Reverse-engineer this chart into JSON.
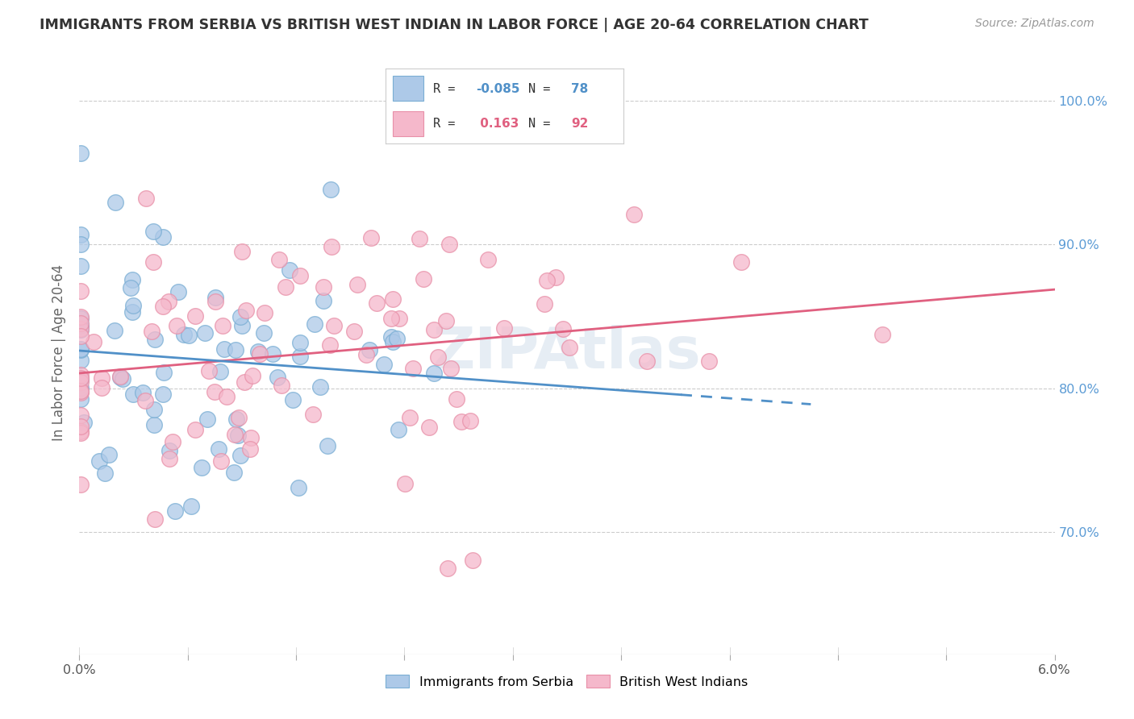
{
  "title": "IMMIGRANTS FROM SERBIA VS BRITISH WEST INDIAN IN LABOR FORCE | AGE 20-64 CORRELATION CHART",
  "source": "Source: ZipAtlas.com",
  "ylabel": "In Labor Force | Age 20-64",
  "xmin": 0.0,
  "xmax": 0.06,
  "ymin": 0.615,
  "ymax": 1.035,
  "serbia_R": -0.085,
  "serbia_N": 78,
  "bwi_R": 0.163,
  "bwi_N": 92,
  "serbia_fill_color": "#adc9e8",
  "serbia_edge_color": "#7aaed4",
  "bwi_fill_color": "#f5b8cb",
  "bwi_edge_color": "#e890a8",
  "serbia_line_color": "#5090c8",
  "bwi_line_color": "#e06080",
  "grid_color": "#cccccc",
  "ytick_vals": [
    0.7,
    0.8,
    0.9,
    1.0
  ],
  "ytick_labels": [
    "70.0%",
    "80.0%",
    "90.0%",
    "100.0%"
  ],
  "legend_text_color": "#333333",
  "right_axis_color": "#5b9bd5",
  "ylabel_color": "#666666",
  "title_color": "#333333",
  "source_color": "#999999",
  "watermark": "ZIPAtlas"
}
